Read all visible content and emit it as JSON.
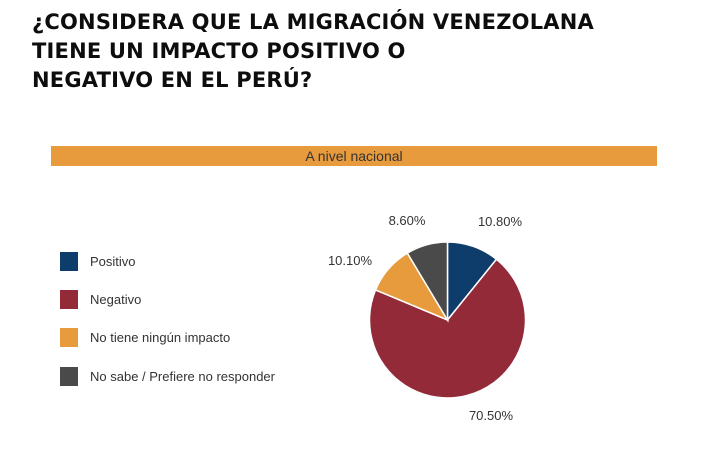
{
  "title_lines": [
    "¿CONSIDERA QUE LA MIGRACIÓN VENEZOLANA",
    "TIENE UN IMPACTO POSITIVO O",
    "NEGATIVO EN EL PERÚ?"
  ],
  "banner": "A nivel nacional",
  "chart_data": {
    "type": "pie",
    "categories": [
      "Positivo",
      "Negativo",
      "No tiene ningún impacto",
      "No sabe / Prefiere no responder"
    ],
    "values": [
      10.8,
      70.5,
      10.1,
      8.6
    ],
    "value_labels": [
      "10.80%",
      "70.50%",
      "10.10%",
      "8.60%"
    ],
    "colors": [
      "#0e3d6b",
      "#922a38",
      "#e79b3c",
      "#4a4a4a"
    ],
    "start": "12 o'clock, clockwise",
    "legend_position": "left"
  }
}
